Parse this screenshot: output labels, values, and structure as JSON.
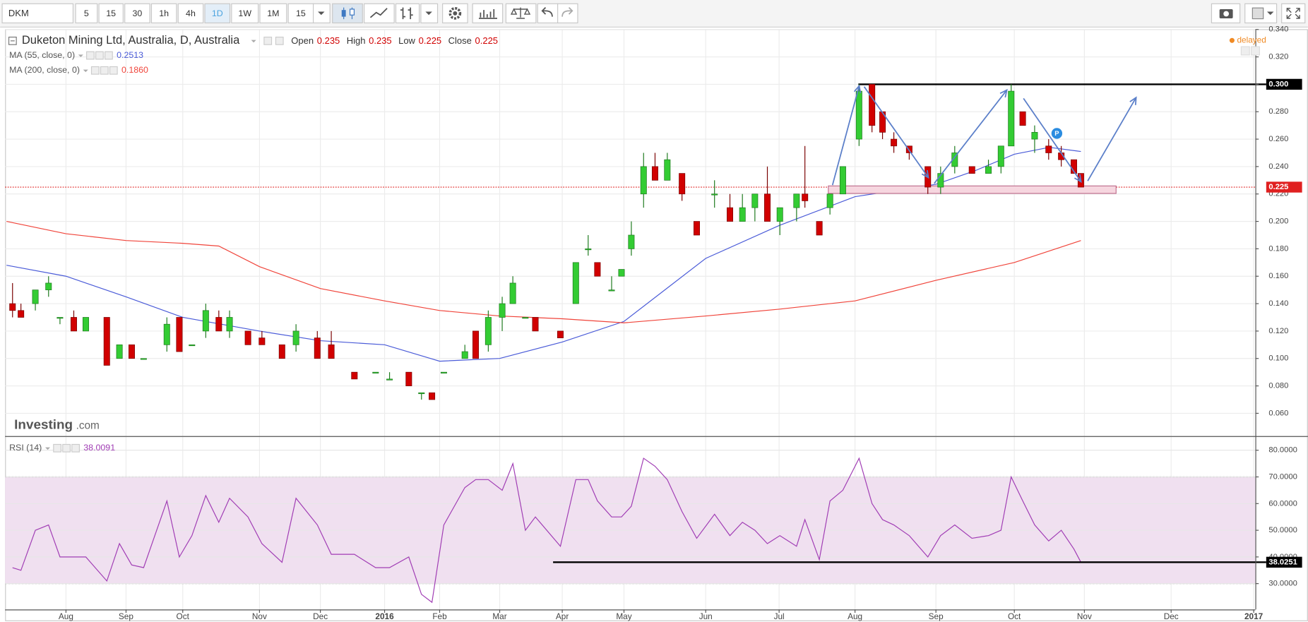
{
  "toolbar": {
    "symbol": "DKM",
    "intervals": [
      "5",
      "15",
      "30",
      "1h",
      "4h",
      "1D",
      "1W",
      "1M",
      "15"
    ]
  },
  "logo": {
    "brand": "Investing",
    "domain": ".com"
  },
  "delayed": "delayed",
  "chart_data": {
    "type": "candlestick",
    "title": "Duketon Mining Ltd, Australia, D, Australia",
    "legend": {
      "open_label": "Open",
      "open": 0.235,
      "high_label": "High",
      "high": 0.235,
      "low_label": "Low",
      "low": 0.225,
      "close_label": "Close",
      "close": 0.225
    },
    "up_color": "#33cc33",
    "down_color": "#d10000",
    "x": [
      0.11,
      0.25,
      0.49,
      0.71,
      0.9,
      1.13,
      1.33,
      1.68,
      1.89,
      2.1,
      2.31,
      2.72,
      2.94,
      3.12,
      3.3,
      3.47,
      3.61,
      3.85,
      4.04,
      4.37,
      4.6,
      4.95,
      5.17,
      5.53,
      5.86,
      6.09,
      6.44,
      6.67,
      6.86,
      7.07,
      7.42,
      7.6,
      7.81,
      8.04,
      8.21,
      8.41,
      8.57,
      8.97,
      9.22,
      9.42,
      9.57,
      9.8,
      9.96,
      10.09,
      10.24,
      10.38,
      10.53,
      10.71,
      10.89,
      11.12,
      11.33,
      11.5,
      11.67,
      11.84,
      12.01,
      12.23,
      12.34,
      12.53,
      12.67,
      12.84,
      13.05,
      13.21,
      13.34,
      13.48,
      13.67,
      13.9,
      14.06,
      14.24,
      14.46,
      14.67,
      14.83,
      14.96,
      15.12,
      15.29,
      15.49,
      15.67,
      15.85,
      15.95
    ],
    "open": [
      0.14,
      0.135,
      0.14,
      0.15,
      0.13,
      0.13,
      0.12,
      0.13,
      0.1,
      0.11,
      0.1,
      0.11,
      0.13,
      0.11,
      0.12,
      0.13,
      0.12,
      0.12,
      0.115,
      0.11,
      0.11,
      0.115,
      0.11,
      0.09,
      0.09,
      0.085,
      0.09,
      0.075,
      0.075,
      0.09,
      0.1,
      0.12,
      0.11,
      0.13,
      0.14,
      0.13,
      0.13,
      0.12,
      0.14,
      0.18,
      0.17,
      0.15,
      0.16,
      0.18,
      0.22,
      0.24,
      0.23,
      0.235,
      0.2,
      0.22,
      0.21,
      0.2,
      0.21,
      0.22,
      0.2,
      0.21,
      0.22,
      0.2,
      0.21,
      0.22,
      0.26,
      0.3,
      0.28,
      0.26,
      0.255,
      0.24,
      0.225,
      0.24,
      0.24,
      0.235,
      0.24,
      0.255,
      0.28,
      0.26,
      0.255,
      0.25,
      0.245,
      0.235
    ],
    "high": [
      0.155,
      0.14,
      0.15,
      0.16,
      0.13,
      0.135,
      0.13,
      0.13,
      0.11,
      0.11,
      0.1,
      0.13,
      0.13,
      0.11,
      0.14,
      0.135,
      0.135,
      0.12,
      0.12,
      0.11,
      0.125,
      0.12,
      0.12,
      0.09,
      0.09,
      0.09,
      0.09,
      0.075,
      0.075,
      0.09,
      0.11,
      0.12,
      0.135,
      0.145,
      0.16,
      0.13,
      0.13,
      0.12,
      0.17,
      0.19,
      0.17,
      0.16,
      0.165,
      0.2,
      0.25,
      0.25,
      0.25,
      0.235,
      0.2,
      0.23,
      0.22,
      0.22,
      0.22,
      0.24,
      0.21,
      0.22,
      0.255,
      0.2,
      0.22,
      0.24,
      0.3,
      0.3,
      0.28,
      0.265,
      0.255,
      0.24,
      0.24,
      0.255,
      0.24,
      0.245,
      0.255,
      0.3,
      0.28,
      0.27,
      0.26,
      0.255,
      0.245,
      0.235
    ],
    "low": [
      0.13,
      0.13,
      0.135,
      0.145,
      0.125,
      0.12,
      0.12,
      0.095,
      0.1,
      0.1,
      0.1,
      0.105,
      0.105,
      0.11,
      0.115,
      0.12,
      0.115,
      0.11,
      0.11,
      0.1,
      0.105,
      0.1,
      0.1,
      0.085,
      0.09,
      0.085,
      0.08,
      0.07,
      0.07,
      0.09,
      0.1,
      0.1,
      0.105,
      0.12,
      0.14,
      0.13,
      0.12,
      0.115,
      0.14,
      0.175,
      0.16,
      0.15,
      0.16,
      0.175,
      0.21,
      0.23,
      0.23,
      0.215,
      0.19,
      0.21,
      0.2,
      0.2,
      0.2,
      0.2,
      0.19,
      0.2,
      0.21,
      0.19,
      0.205,
      0.22,
      0.255,
      0.265,
      0.26,
      0.25,
      0.245,
      0.22,
      0.22,
      0.235,
      0.235,
      0.235,
      0.235,
      0.255,
      0.27,
      0.25,
      0.245,
      0.24,
      0.235,
      0.225
    ],
    "close": [
      0.135,
      0.13,
      0.15,
      0.155,
      0.13,
      0.12,
      0.13,
      0.095,
      0.11,
      0.1,
      0.1,
      0.125,
      0.105,
      0.11,
      0.135,
      0.12,
      0.13,
      0.11,
      0.11,
      0.1,
      0.12,
      0.1,
      0.1,
      0.085,
      0.09,
      0.085,
      0.08,
      0.075,
      0.07,
      0.09,
      0.105,
      0.1,
      0.13,
      0.14,
      0.155,
      0.13,
      0.12,
      0.115,
      0.17,
      0.18,
      0.16,
      0.15,
      0.165,
      0.19,
      0.24,
      0.23,
      0.245,
      0.22,
      0.19,
      0.22,
      0.2,
      0.21,
      0.22,
      0.2,
      0.21,
      0.22,
      0.215,
      0.19,
      0.22,
      0.24,
      0.295,
      0.27,
      0.265,
      0.255,
      0.25,
      0.225,
      0.235,
      0.25,
      0.235,
      0.24,
      0.255,
      0.295,
      0.27,
      0.265,
      0.25,
      0.245,
      0.235,
      0.225
    ],
    "ma": [
      {
        "name": "MA (55, close, 0)",
        "color": "#4a5bd8",
        "last_label": "0.2513",
        "x": [
          0.01,
          1,
          2,
          3,
          4,
          5,
          6,
          7,
          8,
          9,
          10,
          10.5,
          11,
          12,
          13,
          14,
          14.5,
          15,
          15.5,
          15.95
        ],
        "values": [
          0.168,
          0.16,
          0.145,
          0.13,
          0.12,
          0.113,
          0.11,
          0.098,
          0.1,
          0.112,
          0.127,
          0.15,
          0.173,
          0.197,
          0.218,
          0.227,
          0.237,
          0.249,
          0.254,
          0.251
        ]
      },
      {
        "name": "MA (200, close, 0)",
        "color": "#f0443a",
        "last_label": "0.1860",
        "x": [
          0.01,
          1,
          2,
          3,
          3.47,
          4,
          5,
          6,
          7,
          8,
          9,
          10,
          11,
          12,
          13,
          14,
          15,
          15.95
        ],
        "values": [
          0.2,
          0.191,
          0.186,
          0.184,
          0.182,
          0.167,
          0.151,
          0.142,
          0.135,
          0.131,
          0.129,
          0.126,
          0.131,
          0.136,
          0.142,
          0.157,
          0.17,
          0.186
        ]
      }
    ],
    "resistance": {
      "value": 0.3,
      "label": "0.300"
    },
    "last_price": 0.225,
    "event_marker": "P",
    "ylim": [
      0.0434,
      0.3396
    ],
    "yticks": [
      {
        "value": 0.06,
        "label": "0.060"
      },
      {
        "value": 0.08,
        "label": "0.080"
      },
      {
        "value": 0.1,
        "label": "0.100"
      },
      {
        "value": 0.12,
        "label": "0.120"
      },
      {
        "value": 0.14,
        "label": "0.140"
      },
      {
        "value": 0.16,
        "label": "0.160"
      },
      {
        "value": 0.18,
        "label": "0.180"
      },
      {
        "value": 0.2,
        "label": "0.200"
      },
      {
        "value": 0.22,
        "label": "0.220"
      },
      {
        "value": 0.24,
        "label": "0.240"
      },
      {
        "value": 0.26,
        "label": "0.260"
      },
      {
        "value": 0.28,
        "label": "0.280"
      },
      {
        "value": 0.3,
        "label": "0.300"
      },
      {
        "value": 0.32,
        "label": "0.320"
      },
      {
        "value": 0.34,
        "label": "0.340"
      }
    ],
    "xticks": [
      {
        "value": 1,
        "label": "Aug"
      },
      {
        "value": 2,
        "label": "Sep"
      },
      {
        "value": 3,
        "label": "Oct"
      },
      {
        "value": 4,
        "label": "Nov"
      },
      {
        "value": 5,
        "label": "Dec"
      },
      {
        "value": 6,
        "label": "2016"
      },
      {
        "value": 7,
        "label": "Feb"
      },
      {
        "value": 8,
        "label": "Mar"
      },
      {
        "value": 9,
        "label": "Apr"
      },
      {
        "value": 10,
        "label": "May"
      },
      {
        "value": 11,
        "label": "Jun"
      },
      {
        "value": 12,
        "label": "Jul"
      },
      {
        "value": 13,
        "label": "Aug"
      },
      {
        "value": 14,
        "label": "Sep"
      },
      {
        "value": 15,
        "label": "Oct"
      },
      {
        "value": 16,
        "label": "Nov"
      },
      {
        "value": 17,
        "label": "Dec"
      },
      {
        "value": 18,
        "label": "2017"
      }
    ],
    "grid": true,
    "rsi": {
      "name": "RSI (14)",
      "color": "#a03cb4",
      "last": 38.0091,
      "marker": 38.0251,
      "overbought": 70,
      "oversold": 30,
      "values": [
        36,
        35,
        50,
        52,
        40,
        40,
        40,
        31,
        45,
        37,
        36,
        61,
        40,
        48,
        63,
        53,
        62,
        55,
        45,
        38,
        62,
        52,
        41,
        41,
        36,
        36,
        40,
        26,
        23,
        52,
        66,
        69,
        69,
        65,
        75,
        50,
        55,
        44,
        69,
        69,
        61,
        55,
        55,
        59,
        77,
        74,
        69,
        57,
        47,
        56,
        48,
        53,
        50,
        45,
        48,
        44,
        54,
        39,
        61,
        65,
        77,
        60,
        54,
        52,
        48,
        40,
        48,
        52,
        47,
        48,
        50,
        70,
        61,
        52,
        46,
        50,
        43,
        38.0091
      ],
      "ylim": [
        20.3,
        85
      ],
      "yticks": [
        {
          "value": 30,
          "label": "30.0000"
        },
        {
          "value": 40,
          "label": "40.0000"
        },
        {
          "value": 50,
          "label": "50.0000"
        },
        {
          "value": 60,
          "label": "60.0000"
        },
        {
          "value": 70,
          "label": "70.0000"
        },
        {
          "value": 80,
          "label": "80.0000"
        }
      ]
    }
  }
}
